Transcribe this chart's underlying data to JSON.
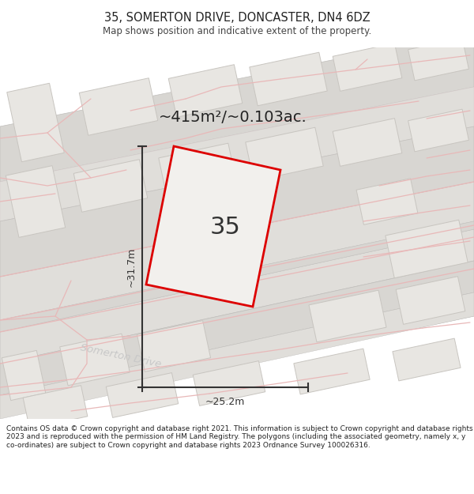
{
  "title": "35, SOMERTON DRIVE, DONCASTER, DN4 6DZ",
  "subtitle": "Map shows position and indicative extent of the property.",
  "footer": "Contains OS data © Crown copyright and database right 2021. This information is subject to Crown copyright and database rights 2023 and is reproduced with the permission of HM Land Registry. The polygons (including the associated geometry, namely x, y co-ordinates) are subject to Crown copyright and database rights 2023 Ordnance Survey 100026316.",
  "area_label": "~415m²/~0.103ac.",
  "number_label": "35",
  "dim_h": "~31.7m",
  "dim_w": "~25.2m",
  "street_label": "Somerton Drive",
  "bg_color": "#f2f0ed",
  "plot_stroke": "#dd0000",
  "plot_fill": "#f2f0ed",
  "dim_color": "#333333",
  "street_color": "#c8c8c8",
  "title_fontsize": 10.5,
  "subtitle_fontsize": 8.5,
  "footer_fontsize": 6.5,
  "road_gray": "#e0deda",
  "building_gray": "#d8d6d2",
  "road_stroke_color": "#d0c0c0",
  "pink": "#e8b8b8"
}
